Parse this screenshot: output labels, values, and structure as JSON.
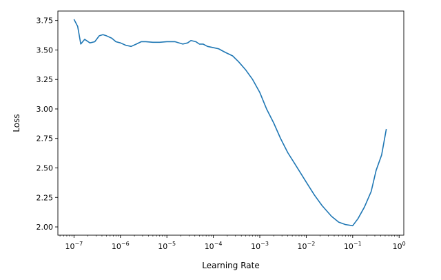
{
  "chart_data": {
    "type": "line",
    "title": "",
    "xlabel": "Learning Rate",
    "ylabel": "Loss",
    "xscale": "log",
    "xlim": [
      4.5e-08,
      1.26
    ],
    "ylim": [
      1.93,
      3.83
    ],
    "grid": false,
    "x_ticks": [
      {
        "value": 1e-07,
        "base": "10",
        "exp": "−7"
      },
      {
        "value": 1e-06,
        "base": "10",
        "exp": "−6"
      },
      {
        "value": 1e-05,
        "base": "10",
        "exp": "−5"
      },
      {
        "value": 0.0001,
        "base": "10",
        "exp": "−4"
      },
      {
        "value": 0.001,
        "base": "10",
        "exp": "−3"
      },
      {
        "value": 0.01,
        "base": "10",
        "exp": "−2"
      },
      {
        "value": 0.1,
        "base": "10",
        "exp": "−1"
      },
      {
        "value": 1,
        "base": "10",
        "exp": "0"
      }
    ],
    "y_ticks": [
      "2.00",
      "2.25",
      "2.50",
      "2.75",
      "3.00",
      "3.25",
      "3.50",
      "3.75"
    ],
    "series": [
      {
        "color": "#1f77b4",
        "x": [
          1e-07,
          1.2e-07,
          1.4e-07,
          1.7e-07,
          2.2e-07,
          2.8e-07,
          3.5e-07,
          4.2e-07,
          5e-07,
          6.5e-07,
          8e-07,
          1e-06,
          1.3e-06,
          1.7e-06,
          2.2e-06,
          2.8e-06,
          3.5e-06,
          5e-06,
          7e-06,
          1e-05,
          1.5e-05,
          2.2e-05,
          2.8e-05,
          3.3e-05,
          4.2e-05,
          5e-05,
          6e-05,
          7.5e-05,
          0.0001,
          0.00013,
          0.00018,
          0.00026,
          0.00035,
          0.0005,
          0.0007,
          0.001,
          0.0014,
          0.002,
          0.0028,
          0.004,
          0.006,
          0.01,
          0.015,
          0.022,
          0.035,
          0.05,
          0.07,
          0.1,
          0.13,
          0.18,
          0.25,
          0.32,
          0.42,
          0.53
        ],
        "y": [
          3.76,
          3.7,
          3.55,
          3.59,
          3.56,
          3.57,
          3.62,
          3.63,
          3.62,
          3.6,
          3.57,
          3.56,
          3.54,
          3.53,
          3.55,
          3.57,
          3.57,
          3.565,
          3.565,
          3.57,
          3.57,
          3.55,
          3.56,
          3.58,
          3.57,
          3.55,
          3.55,
          3.53,
          3.52,
          3.51,
          3.48,
          3.45,
          3.4,
          3.33,
          3.25,
          3.14,
          3.0,
          2.88,
          2.75,
          2.63,
          2.52,
          2.38,
          2.27,
          2.18,
          2.09,
          2.04,
          2.02,
          2.01,
          2.07,
          2.17,
          2.3,
          2.48,
          2.61,
          2.83
        ]
      }
    ]
  }
}
